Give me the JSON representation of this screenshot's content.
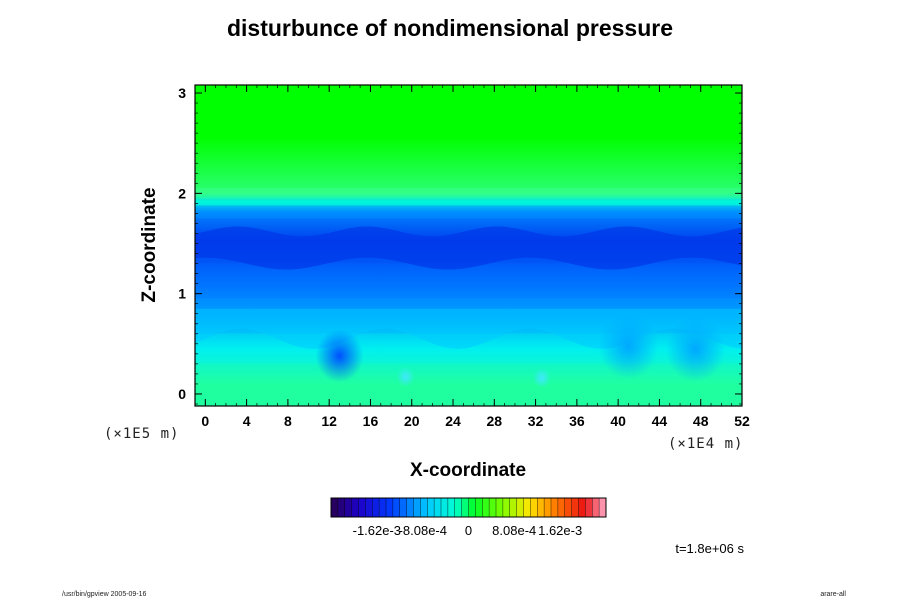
{
  "chart_data": {
    "type": "heatmap",
    "title": "disturbunce of nondimensional pressure",
    "xlabel": "X-coordinate",
    "ylabel": "Z-coordinate",
    "x_unit": "(×1E4 m)",
    "y_unit": "(×1E5 m)",
    "xlim": [
      -1,
      52
    ],
    "ylim": [
      -0.12,
      3.08
    ],
    "x_ticks": [
      "0",
      "4",
      "8",
      "12",
      "16",
      "20",
      "24",
      "28",
      "32",
      "36",
      "40",
      "44",
      "48",
      "52"
    ],
    "y_ticks": [
      "0",
      "1",
      "2",
      "3"
    ],
    "colorbar": {
      "range": [
        -0.00243,
        0.00243
      ],
      "tick_labels": [
        "-1.62e-3",
        "-8.08e-4",
        "0",
        "8.08e-4",
        "1.62e-3"
      ],
      "tick_values": [
        -0.00162,
        -0.000808,
        0,
        0.000808,
        0.00162
      ]
    },
    "layers": [
      {
        "z_from": 3.08,
        "z_to": 2.05,
        "value": 0.0002,
        "color": "#00ff00"
      },
      {
        "z_from": 2.05,
        "z_to": 1.95,
        "value": 5e-05,
        "color": "#33ff88"
      },
      {
        "z_from": 1.95,
        "z_to": 1.88,
        "value": -0.00035,
        "color": "#00e8e0"
      },
      {
        "z_from": 1.88,
        "z_to": 1.75,
        "value": -0.00085,
        "color": "#0090ff"
      },
      {
        "z_from": 1.75,
        "z_to": 1.3,
        "value": -0.0013,
        "color": "#0040f0"
      },
      {
        "z_from": 1.3,
        "z_to": 0.95,
        "value": -0.00105,
        "color": "#0070ff"
      },
      {
        "z_from": 0.95,
        "z_to": 0.6,
        "value": -0.0008,
        "color": "#00a0ff"
      },
      {
        "z_from": 0.6,
        "z_to": 0.3,
        "value": -0.0004,
        "color": "#00f0f0"
      },
      {
        "z_from": 0.3,
        "z_to": -0.12,
        "value": -5e-05,
        "color": "#20ffa0"
      }
    ],
    "features": [
      {
        "x": 13,
        "z": 0.38,
        "value": -0.001
      },
      {
        "x": 19.4,
        "z": 0.17,
        "value": -0.0005
      },
      {
        "x": 32.6,
        "z": 0.16,
        "value": -0.0005
      },
      {
        "x": 41,
        "z": 0.48,
        "value": -0.0007
      },
      {
        "x": 47.5,
        "z": 0.45,
        "value": -0.0007
      }
    ],
    "time_label": "t=1.8e+06 s"
  },
  "footer": {
    "left": "/usr/bin/gpview 2005-09-16",
    "right": "arare-all"
  }
}
